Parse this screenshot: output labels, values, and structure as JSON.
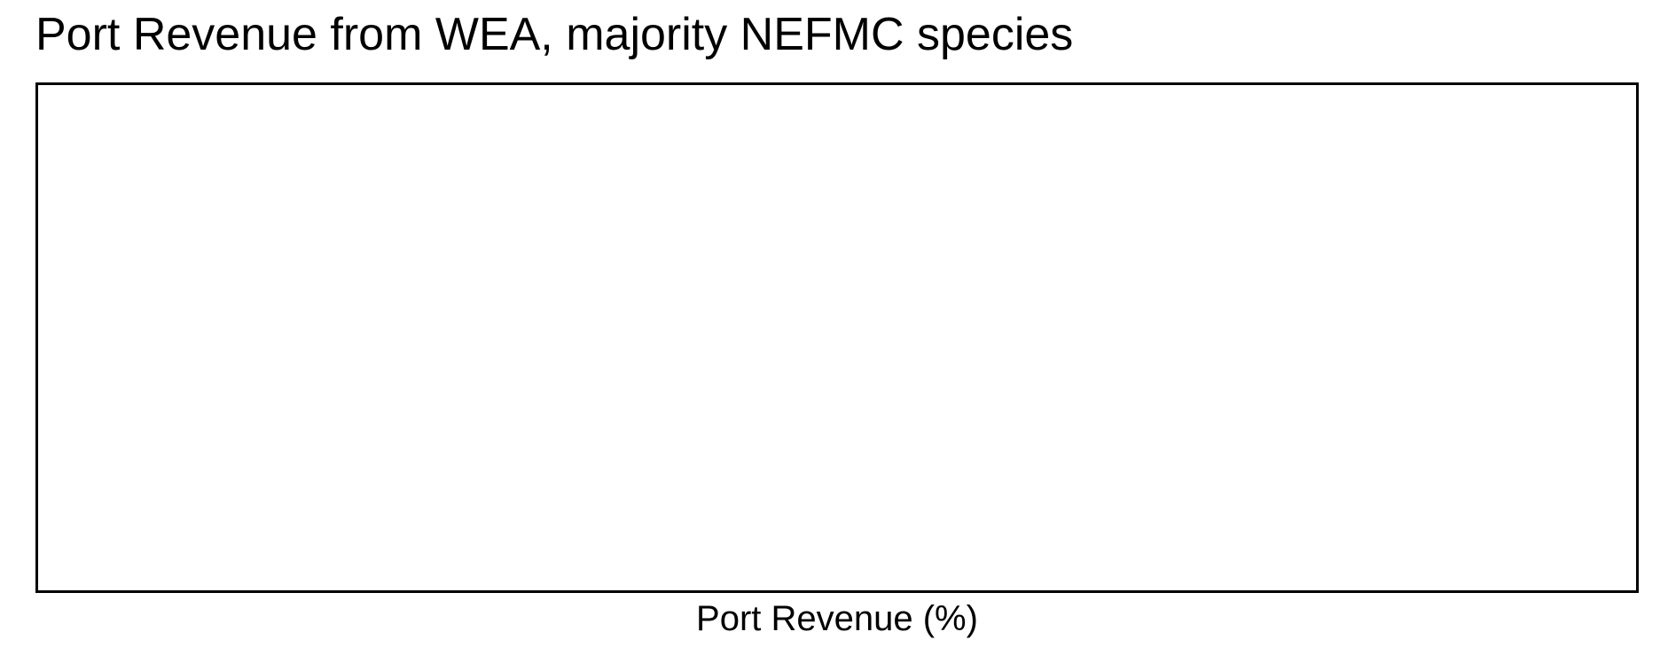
{
  "chart_data": {
    "type": "bar",
    "title": "Port Revenue from WEA, majority NEFMC species",
    "xlabel": "Port Revenue (%)",
    "ylabel": "",
    "categories": [],
    "values": []
  }
}
